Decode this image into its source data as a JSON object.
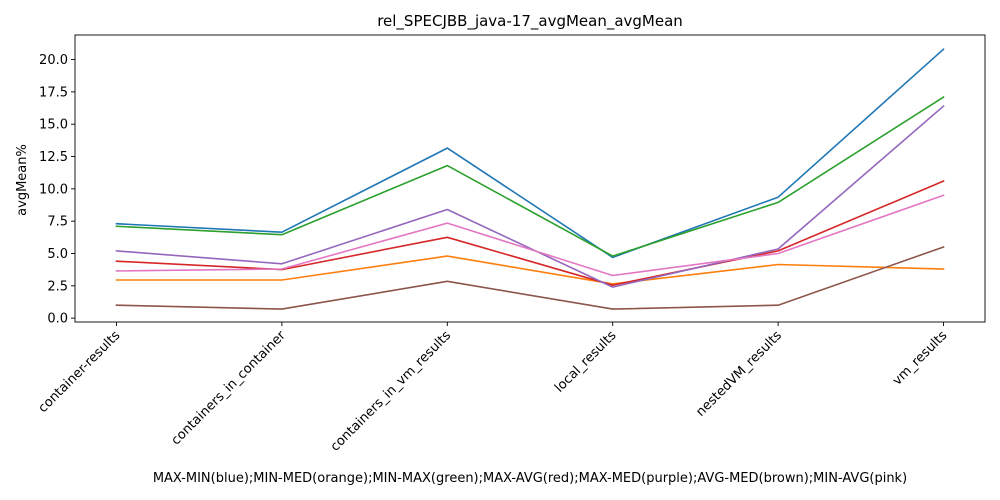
{
  "chart_data": {
    "type": "line",
    "title": "rel_SPECJBB_java-17_avgMean_avgMean",
    "xlabel": "MAX-MIN(blue);MIN-MED(orange);MIN-MAX(green);MAX-AVG(red);MAX-MED(purple);AVG-MED(brown);MIN-AVG(pink)",
    "ylabel": "avgMean%",
    "categories": [
      "container-results",
      "containers_in_container",
      "containers_in_vm_results",
      "local_results",
      "nestedVM_results",
      "vm_results"
    ],
    "y_ticks": [
      "0.0",
      "2.5",
      "5.0",
      "7.5",
      "10.0",
      "12.5",
      "15.0",
      "17.5",
      "20.0"
    ],
    "ylim": [
      -0.3,
      21.9
    ],
    "grid": false,
    "series": [
      {
        "color": "#1f77b4",
        "values": [
          7.3,
          6.65,
          13.15,
          4.7,
          9.35,
          20.8
        ]
      },
      {
        "color": "#ff7f0e",
        "values": [
          2.95,
          2.95,
          4.8,
          2.65,
          4.15,
          3.8
        ]
      },
      {
        "color": "#2ca02c",
        "values": [
          7.1,
          6.45,
          11.8,
          4.8,
          8.95,
          17.1
        ]
      },
      {
        "color": "#d62728",
        "values": [
          4.4,
          3.75,
          6.25,
          2.55,
          5.2,
          10.6
        ]
      },
      {
        "color": "#9467bd",
        "values": [
          5.2,
          4.2,
          8.4,
          2.4,
          5.35,
          16.4
        ]
      },
      {
        "color": "#8c564b",
        "values": [
          1.0,
          0.7,
          2.85,
          0.7,
          1.0,
          5.5
        ]
      },
      {
        "color": "#e377c2",
        "values": [
          3.65,
          3.8,
          7.35,
          3.3,
          5.0,
          9.5
        ]
      }
    ]
  }
}
